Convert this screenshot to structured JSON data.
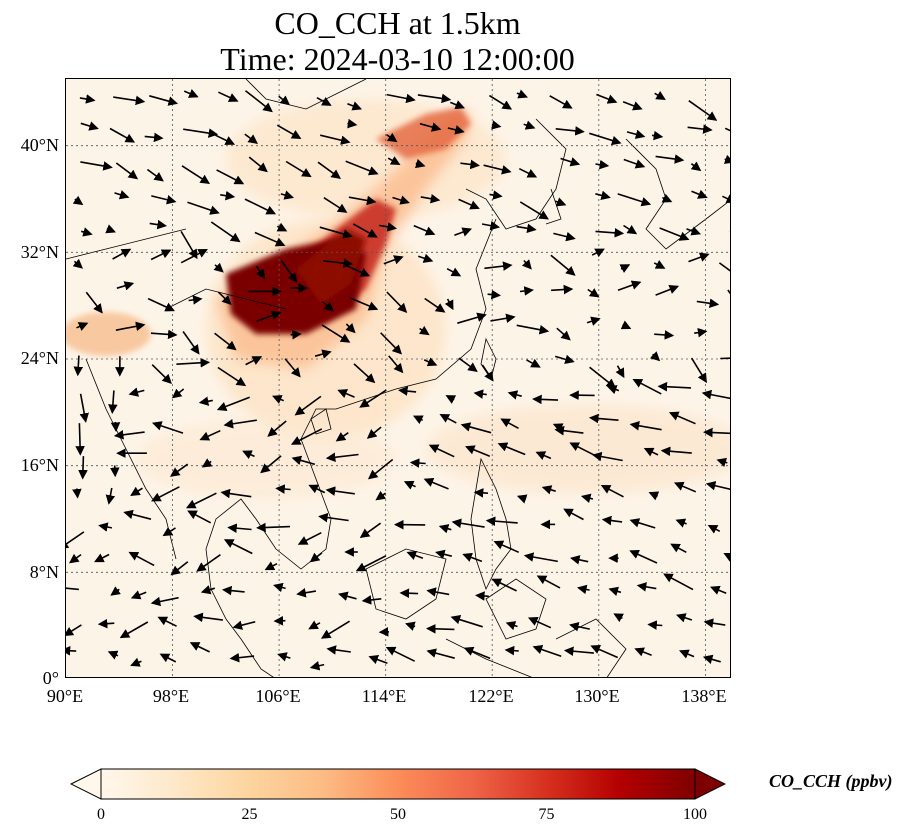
{
  "title": {
    "line1": "CO_CCH at 1.5km",
    "line2": "Time: 2024-03-10 12:00:00"
  },
  "map": {
    "extent": {
      "lon": [
        90,
        140
      ],
      "lat": [
        0,
        45
      ]
    },
    "gridlines": "dotted"
  },
  "axes": {
    "y_ticks": [
      "40°N",
      "32°N",
      "24°N",
      "16°N",
      "8°N",
      "0°"
    ],
    "x_ticks": [
      "90°E",
      "98°E",
      "106°E",
      "114°E",
      "122°E",
      "130°E",
      "138°E"
    ]
  },
  "colorbar": {
    "label": "CO_CCH (ppbv)",
    "ticks": [
      "0",
      "25",
      "50",
      "75",
      "100"
    ],
    "colormap": "OrRd",
    "range": [
      0,
      100
    ],
    "extend": "both",
    "colors": [
      "#fff7ec",
      "#fee8c8",
      "#fdd49e",
      "#fdbb84",
      "#fc8d59",
      "#ef6548",
      "#d7301f",
      "#b30000",
      "#7f0000"
    ]
  },
  "chart_data": {
    "type": "heatmap",
    "title": "CO_CCH at 1.5km",
    "subtitle": "Time: 2024-03-10 12:00:00",
    "variable": "CO_CCH",
    "units": "ppbv",
    "value_range": [
      0,
      100
    ],
    "x_ticks_deg_E": [
      90,
      98,
      106,
      114,
      122,
      130,
      138
    ],
    "y_ticks_deg_N": [
      0,
      8,
      16,
      24,
      32,
      40
    ],
    "grid": true,
    "overlay": "wind vectors",
    "high_concentration_zones": [
      {
        "lon": 104.5,
        "lat": 29.5,
        "value": 100
      },
      {
        "lon": 107.5,
        "lat": 31.5,
        "value": 95
      },
      {
        "lon": 110.5,
        "lat": 34.0,
        "value": 80
      },
      {
        "lon": 113.5,
        "lat": 37.5,
        "value": 60
      },
      {
        "lon": 117.0,
        "lat": 41.0,
        "value": 50
      },
      {
        "lon": 92.5,
        "lat": 26.5,
        "value": 25
      }
    ]
  }
}
